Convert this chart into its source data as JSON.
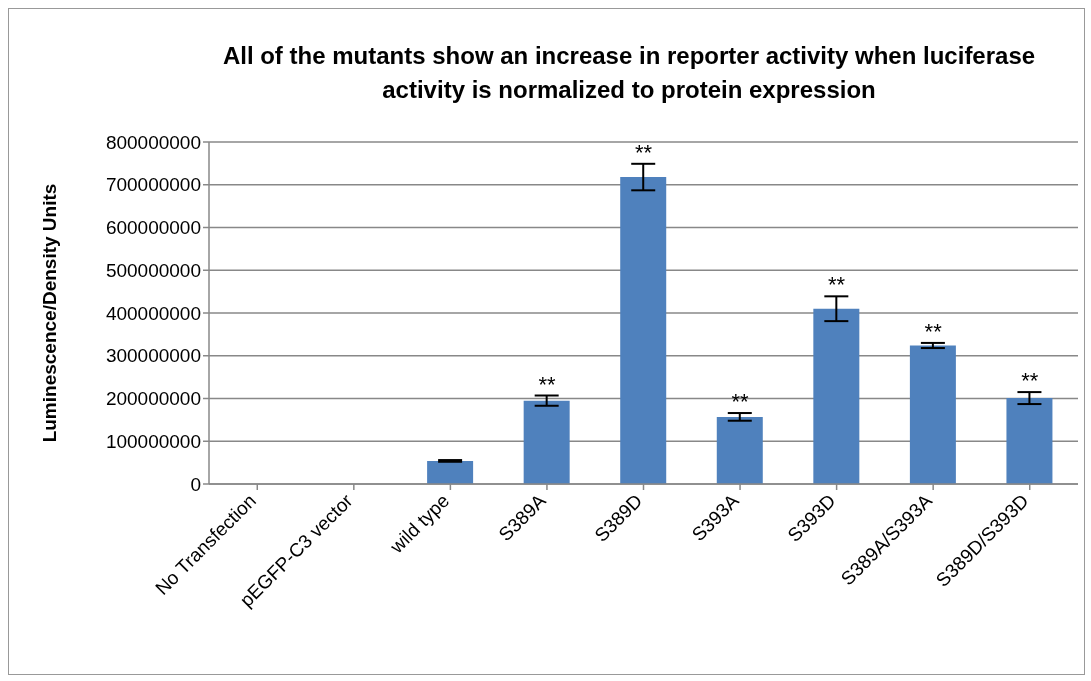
{
  "chart_data": {
    "type": "bar",
    "title": "All of the mutants show an increase in reporter activity when luciferase activity is normalized to protein expression",
    "ylabel": "Luminescence/Density Units",
    "categories": [
      "No Transfection",
      "pEGFP-C3 vector",
      "wild type",
      "S389A",
      "S389D",
      "S393A",
      "S393D",
      "S389A/S393A",
      "S389D/S393D"
    ],
    "values": [
      0,
      0,
      54000000,
      195000000,
      718000000,
      157000000,
      410000000,
      324000000,
      201000000
    ],
    "errors": [
      null,
      null,
      2000000,
      12000000,
      31000000,
      9000000,
      29000000,
      6000000,
      14000000
    ],
    "color": "#4f81bd",
    "ylim": [
      0,
      800000000
    ],
    "yticks": [
      0,
      100000000,
      200000000,
      300000000,
      400000000,
      500000000,
      600000000,
      700000000,
      800000000
    ],
    "grid": "y",
    "legend": false,
    "annotations": [
      {
        "text": "**",
        "x": "S389A",
        "y": 195000000
      },
      {
        "text": "**",
        "x": "S389D",
        "y": 718000000
      },
      {
        "text": "**",
        "x": "S393A",
        "y": 157000000
      },
      {
        "text": "**",
        "x": "S393D",
        "y": 410000000
      },
      {
        "text": "**",
        "x": "S389A/S393A",
        "y": 324000000
      },
      {
        "text": "**",
        "x": "S389D/S393D",
        "y": 201000000
      }
    ]
  }
}
